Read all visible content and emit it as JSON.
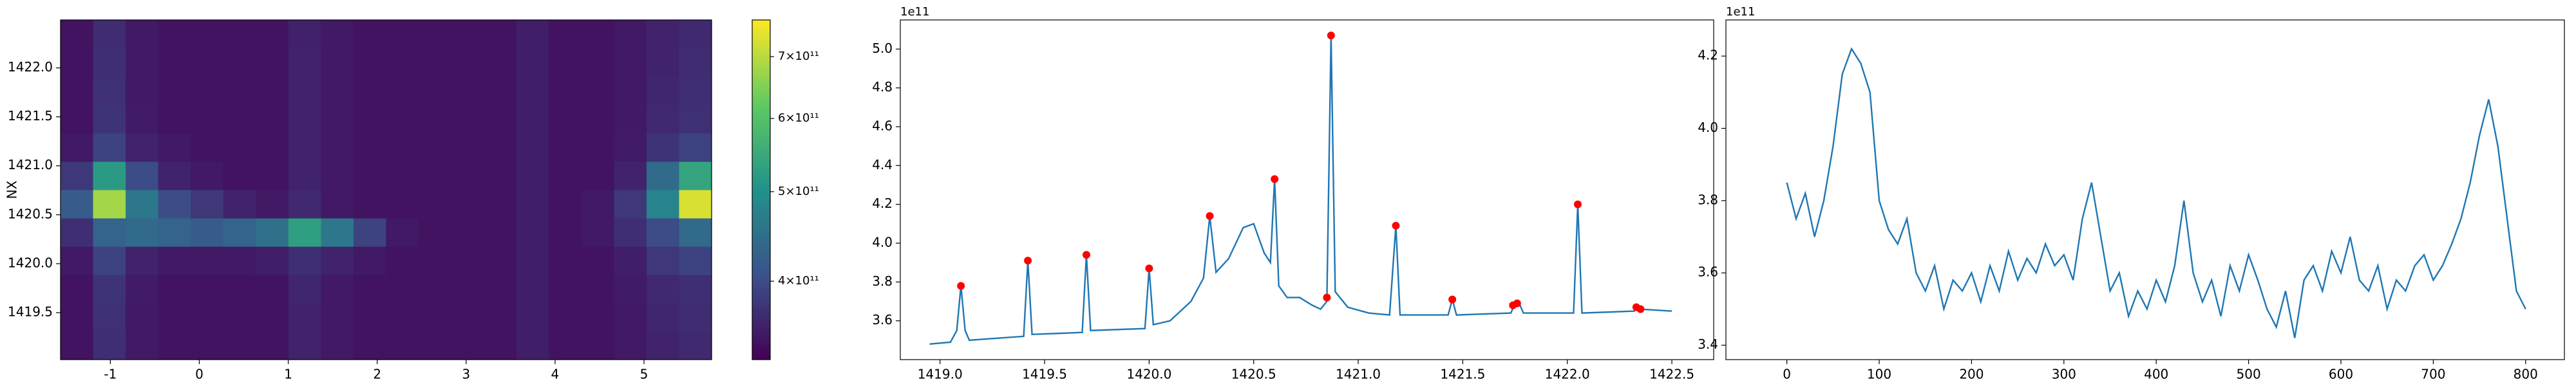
{
  "chart_data": [
    {
      "type": "heatmap",
      "ylabel": "NX",
      "xlim": [
        -1.56,
        5.76
      ],
      "ylim": [
        1419.02,
        1422.49
      ],
      "xticks": [
        -1,
        0,
        1,
        2,
        3,
        4,
        5
      ],
      "yticks": [
        1419.5,
        {
          "value": 1420.0,
          "label": "1420.0"
        },
        1420.5,
        {
          "value": 1421.0,
          "label": "1421.0"
        },
        1421.5,
        {
          "value": 1422.0,
          "label": "1422.0"
        }
      ],
      "colormap": "viridis",
      "colorbar": {
        "scale": "log",
        "lim": [
          329000000000.0,
          767000000000.0
        ],
        "ticks": [
          {
            "value": 400000000000.0,
            "label": "4×10¹¹"
          },
          {
            "value": 500000000000.0,
            "label": "5×10¹¹"
          },
          {
            "value": 600000000000.0,
            "label": "6×10¹¹"
          },
          {
            "value": 700000000000.0,
            "label": "7×10¹¹"
          }
        ]
      },
      "z": [
        [
          345000000000.0,
          370000000000.0,
          350000000000.0,
          345000000000.0,
          345000000000.0,
          345000000000.0,
          345000000000.0,
          360000000000.0,
          350000000000.0,
          345000000000.0,
          345000000000.0,
          345000000000.0,
          345000000000.0,
          345000000000.0,
          355000000000.0,
          345000000000.0,
          345000000000.0,
          350000000000.0,
          360000000000.0,
          365000000000.0
        ],
        [
          345000000000.0,
          372000000000.0,
          350000000000.0,
          345000000000.0,
          345000000000.0,
          345000000000.0,
          345000000000.0,
          360000000000.0,
          350000000000.0,
          345000000000.0,
          345000000000.0,
          345000000000.0,
          345000000000.0,
          345000000000.0,
          355000000000.0,
          345000000000.0,
          345000000000.0,
          350000000000.0,
          362000000000.0,
          368000000000.0
        ],
        [
          345000000000.0,
          375000000000.0,
          352000000000.0,
          345000000000.0,
          345000000000.0,
          345000000000.0,
          345000000000.0,
          362000000000.0,
          350000000000.0,
          345000000000.0,
          345000000000.0,
          345000000000.0,
          345000000000.0,
          345000000000.0,
          355000000000.0,
          345000000000.0,
          345000000000.0,
          352000000000.0,
          365000000000.0,
          370000000000.0
        ],
        [
          350000000000.0,
          390000000000.0,
          360000000000.0,
          350000000000.0,
          350000000000.0,
          350000000000.0,
          355000000000.0,
          370000000000.0,
          360000000000.0,
          350000000000.0,
          345000000000.0,
          345000000000.0,
          345000000000.0,
          345000000000.0,
          355000000000.0,
          345000000000.0,
          345000000000.0,
          355000000000.0,
          380000000000.0,
          390000000000.0
        ],
        [
          370000000000.0,
          430000000000.0,
          440000000000.0,
          430000000000.0,
          420000000000.0,
          430000000000.0,
          450000000000.0,
          530000000000.0,
          460000000000.0,
          390000000000.0,
          350000000000.0,
          345000000000.0,
          345000000000.0,
          345000000000.0,
          355000000000.0,
          345000000000.0,
          350000000000.0,
          370000000000.0,
          400000000000.0,
          440000000000.0
        ],
        [
          420000000000.0,
          680000000000.0,
          460000000000.0,
          400000000000.0,
          380000000000.0,
          360000000000.0,
          350000000000.0,
          365000000000.0,
          350000000000.0,
          345000000000.0,
          345000000000.0,
          345000000000.0,
          345000000000.0,
          345000000000.0,
          355000000000.0,
          345000000000.0,
          350000000000.0,
          380000000000.0,
          480000000000.0,
          730000000000.0
        ],
        [
          380000000000.0,
          520000000000.0,
          400000000000.0,
          360000000000.0,
          350000000000.0,
          345000000000.0,
          345000000000.0,
          360000000000.0,
          350000000000.0,
          345000000000.0,
          345000000000.0,
          345000000000.0,
          345000000000.0,
          345000000000.0,
          355000000000.0,
          345000000000.0,
          345000000000.0,
          360000000000.0,
          440000000000.0,
          540000000000.0
        ],
        [
          350000000000.0,
          390000000000.0,
          360000000000.0,
          350000000000.0,
          345000000000.0,
          345000000000.0,
          345000000000.0,
          360000000000.0,
          350000000000.0,
          345000000000.0,
          345000000000.0,
          345000000000.0,
          345000000000.0,
          345000000000.0,
          355000000000.0,
          345000000000.0,
          345000000000.0,
          352000000000.0,
          375000000000.0,
          390000000000.0
        ],
        [
          345000000000.0,
          375000000000.0,
          352000000000.0,
          345000000000.0,
          345000000000.0,
          345000000000.0,
          345000000000.0,
          360000000000.0,
          350000000000.0,
          345000000000.0,
          345000000000.0,
          345000000000.0,
          345000000000.0,
          345000000000.0,
          355000000000.0,
          345000000000.0,
          345000000000.0,
          350000000000.0,
          365000000000.0,
          372000000000.0
        ],
        [
          345000000000.0,
          372000000000.0,
          350000000000.0,
          345000000000.0,
          345000000000.0,
          345000000000.0,
          345000000000.0,
          360000000000.0,
          350000000000.0,
          345000000000.0,
          345000000000.0,
          345000000000.0,
          345000000000.0,
          345000000000.0,
          355000000000.0,
          345000000000.0,
          345000000000.0,
          350000000000.0,
          362000000000.0,
          370000000000.0
        ],
        [
          345000000000.0,
          370000000000.0,
          350000000000.0,
          345000000000.0,
          345000000000.0,
          345000000000.0,
          345000000000.0,
          360000000000.0,
          350000000000.0,
          345000000000.0,
          345000000000.0,
          345000000000.0,
          345000000000.0,
          345000000000.0,
          355000000000.0,
          345000000000.0,
          345000000000.0,
          350000000000.0,
          360000000000.0,
          368000000000.0
        ],
        [
          345000000000.0,
          368000000000.0,
          350000000000.0,
          345000000000.0,
          345000000000.0,
          345000000000.0,
          345000000000.0,
          358000000000.0,
          350000000000.0,
          345000000000.0,
          345000000000.0,
          345000000000.0,
          345000000000.0,
          345000000000.0,
          355000000000.0,
          345000000000.0,
          345000000000.0,
          350000000000.0,
          360000000000.0,
          365000000000.0
        ]
      ]
    },
    {
      "type": "line",
      "offset_label": "1e11",
      "color": "#1f77b4",
      "xlim": [
        1418.81,
        1422.7
      ],
      "ylim": [
        3.4,
        5.15
      ],
      "xticks": [
        {
          "value": 1419.0,
          "label": "1419.0"
        },
        1419.5,
        {
          "value": 1420.0,
          "label": "1420.0"
        },
        1420.5,
        {
          "value": 1421.0,
          "label": "1421.0"
        },
        1421.5,
        {
          "value": 1422.0,
          "label": "1422.0"
        },
        1422.5
      ],
      "yticks": [
        3.6,
        3.8,
        {
          "value": 4.0,
          "label": "4.0"
        },
        4.2,
        4.4,
        4.6,
        4.8,
        {
          "value": 5.0,
          "label": "5.0"
        }
      ],
      "x": [
        1418.95,
        1419.05,
        1419.08,
        1419.1,
        1419.12,
        1419.14,
        1419.4,
        1419.42,
        1419.44,
        1419.68,
        1419.7,
        1419.72,
        1419.98,
        1420.0,
        1420.02,
        1420.1,
        1420.2,
        1420.26,
        1420.29,
        1420.32,
        1420.38,
        1420.45,
        1420.5,
        1420.55,
        1420.58,
        1420.6,
        1420.62,
        1420.66,
        1420.72,
        1420.78,
        1420.82,
        1420.85,
        1420.87,
        1420.89,
        1420.95,
        1421.05,
        1421.15,
        1421.18,
        1421.2,
        1421.43,
        1421.45,
        1421.47,
        1421.73,
        1421.75,
        1421.77,
        1421.79,
        1422.03,
        1422.05,
        1422.07,
        1422.32,
        1422.33,
        1422.35,
        1422.5
      ],
      "values": [
        3.48,
        3.49,
        3.55,
        3.78,
        3.55,
        3.5,
        3.52,
        3.91,
        3.53,
        3.54,
        3.94,
        3.55,
        3.56,
        3.87,
        3.58,
        3.6,
        3.7,
        3.82,
        4.14,
        3.85,
        3.92,
        4.08,
        4.1,
        3.95,
        3.9,
        4.33,
        3.78,
        3.72,
        3.72,
        3.68,
        3.66,
        3.7,
        5.07,
        3.75,
        3.67,
        3.64,
        3.63,
        4.09,
        3.63,
        3.63,
        3.71,
        3.63,
        3.64,
        3.69,
        3.69,
        3.64,
        3.64,
        4.2,
        3.64,
        3.65,
        3.67,
        3.66,
        3.65
      ],
      "markers": {
        "color": "#ff0000",
        "x": [
          1419.1,
          1419.42,
          1419.7,
          1420.0,
          1420.29,
          1420.6,
          1420.85,
          1420.87,
          1421.18,
          1421.45,
          1421.74,
          1421.76,
          1422.05,
          1422.33,
          1422.35
        ],
        "values": [
          3.78,
          3.91,
          3.94,
          3.87,
          4.14,
          4.33,
          3.72,
          5.07,
          4.09,
          3.71,
          3.68,
          3.69,
          4.2,
          3.67,
          3.66
        ]
      }
    },
    {
      "type": "line",
      "offset_label": "1e11",
      "color": "#1f77b4",
      "xlim": [
        -66,
        842
      ],
      "ylim": [
        3.36,
        4.3
      ],
      "xticks": [
        0,
        100,
        200,
        300,
        400,
        500,
        600,
        700,
        800
      ],
      "yticks": [
        3.4,
        3.6,
        3.8,
        {
          "value": 4.0,
          "label": "4.0"
        },
        4.2
      ],
      "x": [
        0,
        10,
        20,
        30,
        40,
        50,
        60,
        70,
        80,
        90,
        100,
        110,
        120,
        130,
        140,
        150,
        160,
        170,
        180,
        190,
        200,
        210,
        220,
        230,
        240,
        250,
        260,
        270,
        280,
        290,
        300,
        310,
        320,
        330,
        340,
        350,
        360,
        370,
        380,
        390,
        400,
        410,
        420,
        430,
        440,
        450,
        460,
        470,
        480,
        490,
        500,
        510,
        520,
        530,
        540,
        550,
        560,
        570,
        580,
        590,
        600,
        610,
        620,
        630,
        640,
        650,
        660,
        670,
        680,
        690,
        700,
        710,
        720,
        730,
        740,
        750,
        760,
        770,
        780,
        790,
        800
      ],
      "values": [
        3.85,
        3.75,
        3.82,
        3.7,
        3.8,
        3.95,
        4.15,
        4.22,
        4.18,
        4.1,
        3.8,
        3.72,
        3.68,
        3.75,
        3.6,
        3.55,
        3.62,
        3.5,
        3.58,
        3.55,
        3.6,
        3.52,
        3.62,
        3.55,
        3.66,
        3.58,
        3.64,
        3.6,
        3.68,
        3.62,
        3.65,
        3.58,
        3.75,
        3.85,
        3.7,
        3.55,
        3.6,
        3.48,
        3.55,
        3.5,
        3.58,
        3.52,
        3.62,
        3.8,
        3.6,
        3.52,
        3.58,
        3.48,
        3.62,
        3.55,
        3.65,
        3.58,
        3.5,
        3.45,
        3.55,
        3.42,
        3.58,
        3.62,
        3.55,
        3.66,
        3.6,
        3.7,
        3.58,
        3.55,
        3.62,
        3.5,
        3.58,
        3.55,
        3.62,
        3.65,
        3.58,
        3.62,
        3.68,
        3.75,
        3.85,
        3.98,
        4.08,
        3.95,
        3.75,
        3.55,
        3.5
      ]
    }
  ]
}
